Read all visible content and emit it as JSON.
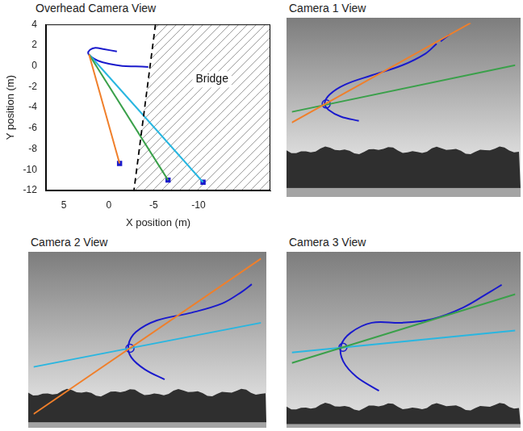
{
  "chart_data": [
    {
      "type": "line",
      "title": "Overhead Camera View",
      "xlabel": "X position (m)",
      "ylabel": "Y position (m)",
      "xlim": [
        7,
        -18
      ],
      "ylim": [
        -12,
        4
      ],
      "xticks": [
        5,
        0,
        -5,
        -10
      ],
      "yticks": [
        4,
        2,
        0,
        -2,
        -4,
        -6,
        -8,
        -10,
        -12
      ],
      "grid": false,
      "annotations": [
        {
          "text": "Bridge",
          "x": -11.5,
          "y": -1.3
        }
      ],
      "series": [
        {
          "color": "#000000",
          "line_style": "dashed",
          "x": [
            -5.2,
            -2.8
          ],
          "values": [
            4,
            -12
          ]
        },
        {
          "color": "#f07f2a",
          "line_style": "solid",
          "x": [
            2.2,
            -1.2
          ],
          "values": [
            1.1,
            -9.4
          ]
        },
        {
          "color": "#3aa04a",
          "line_style": "solid",
          "x": [
            2.2,
            -6.6
          ],
          "values": [
            1.1,
            -11
          ]
        },
        {
          "color": "#29b6e0",
          "line_style": "solid",
          "x": [
            2.2,
            -10.5
          ],
          "values": [
            1.1,
            -11.2
          ]
        },
        {
          "color": "#1a1acc",
          "line_style": "solid",
          "x": [
            -4.4,
            -3,
            -1.5,
            0,
            1.2,
            2.0,
            2.3,
            2.1,
            1.5,
            0.5,
            -0.9
          ],
          "values": [
            -0.1,
            -0.05,
            0,
            0.2,
            0.5,
            0.9,
            1.2,
            1.55,
            1.75,
            1.6,
            1.4
          ]
        },
        {
          "type": "scatter",
          "marker": "square",
          "color": "#1a1acc",
          "x": [
            -1.2,
            -6.6,
            -10.5
          ],
          "values": [
            -9.4,
            -11,
            -11.2
          ]
        }
      ]
    },
    {
      "type": "line",
      "title": "Camera 1 View",
      "tick_labels": false,
      "grid": false,
      "xlim": [
        0,
        100
      ],
      "ylim": [
        100,
        0
      ],
      "series": [
        {
          "color": "#f07f2a",
          "line_style": "solid",
          "x": [
            0,
            80
          ],
          "values": [
            59,
            0
          ]
        },
        {
          "color": "#3aa04a",
          "line_style": "solid",
          "x": [
            0,
            100
          ],
          "values": [
            52.7,
            25
          ]
        },
        {
          "color": "#1a1acc",
          "line_style": "solid",
          "x": [
            30,
            22,
            16.4,
            14.7,
            17,
            24,
            35.8,
            49.5,
            59.7,
            64.8,
            null,
            66.6,
            70.6
          ],
          "values": [
            58,
            55.5,
            51.4,
            47.7,
            42.3,
            36.4,
            31,
            25,
            18.2,
            12.3,
            null,
            10.9,
            6.8
          ]
        },
        {
          "type": "scatter",
          "marker": "circle",
          "color": "#1a1acc",
          "x": [
            15.4
          ],
          "values": [
            48
          ]
        }
      ]
    },
    {
      "type": "line",
      "title": "Camera 2 View",
      "tick_labels": false,
      "grid": false,
      "xlim": [
        0,
        100
      ],
      "ylim": [
        100,
        0
      ],
      "series": [
        {
          "color": "#f07f2a",
          "line_style": "solid",
          "x": [
            0,
            100
          ],
          "values": [
            94.9,
            0.9
          ]
        },
        {
          "color": "#29b6e0",
          "line_style": "solid",
          "x": [
            0,
            100
          ],
          "values": [
            66.4,
            39.7
          ]
        },
        {
          "color": "#1a1acc",
          "line_style": "solid",
          "x": [
            57.6,
            49,
            43,
            41.7,
            45,
            54.2,
            69.5,
            83,
            91.5,
            95.9
          ],
          "values": [
            74,
            68,
            60.7,
            53.3,
            45.3,
            38.3,
            33.6,
            28,
            21,
            16.4
          ]
        },
        {
          "type": "scatter",
          "marker": "circle",
          "color": "#1a1acc",
          "x": [
            42.4
          ],
          "values": [
            55.1
          ]
        }
      ]
    },
    {
      "type": "line",
      "title": "Camera 3 View",
      "tick_labels": false,
      "grid": false,
      "xlim": [
        0,
        100
      ],
      "ylim": [
        100,
        0
      ],
      "series": [
        {
          "color": "#3aa04a",
          "line_style": "solid",
          "x": [
            0,
            100
          ],
          "values": [
            64,
            22.4
          ]
        },
        {
          "color": "#29b6e0",
          "line_style": "solid",
          "x": [
            0,
            100
          ],
          "values": [
            57.7,
            44.4
          ]
        },
        {
          "color": "#1a1acc",
          "line_style": "solid",
          "x": [
            39,
            29,
            23,
            22,
            26.3,
            35.8,
            49.5,
            63,
            76.8,
            88.7,
            93.9
          ],
          "values": [
            80.8,
            72.4,
            63,
            53.7,
            45.8,
            39.7,
            39.7,
            37.4,
            30.4,
            21,
            16.8
          ]
        },
        {
          "type": "scatter",
          "marker": "circle",
          "color": "#1a1acc",
          "x": [
            22.9
          ],
          "values": [
            54.5
          ]
        }
      ]
    }
  ]
}
